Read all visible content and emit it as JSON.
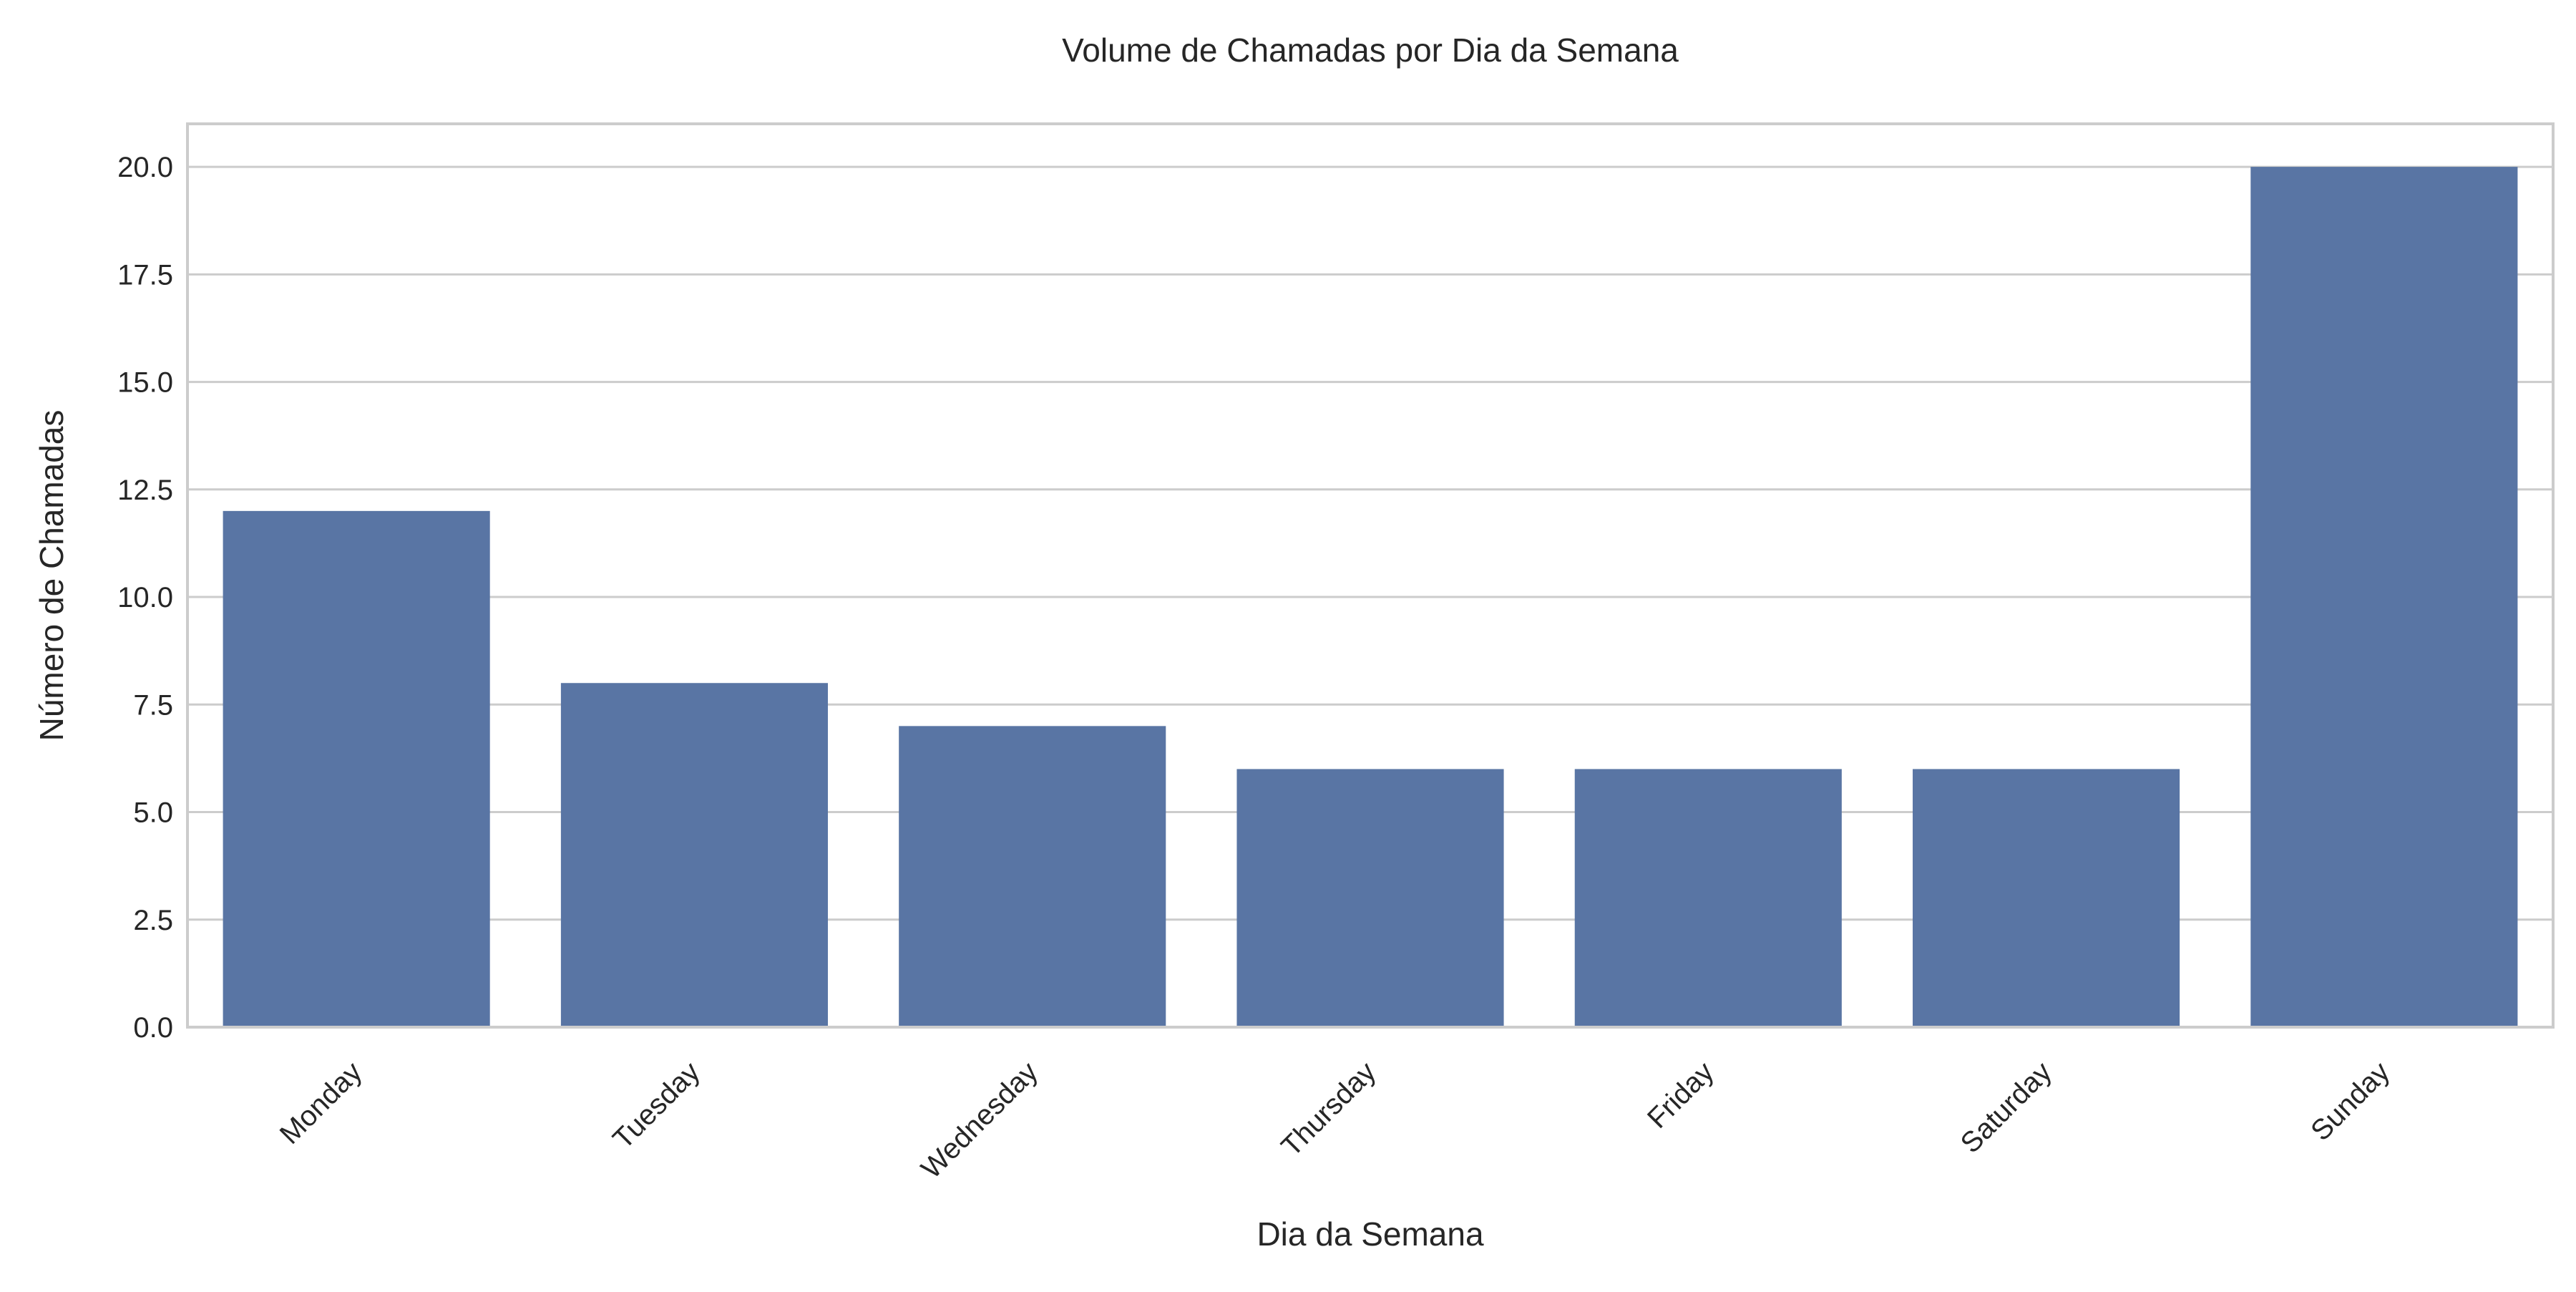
{
  "chart_data": {
    "type": "bar",
    "title": "Volume de Chamadas por Dia da Semana",
    "xlabel": "Dia da Semana",
    "ylabel": "Número de Chamadas",
    "categories": [
      "Monday",
      "Tuesday",
      "Wednesday",
      "Thursday",
      "Friday",
      "Saturday",
      "Sunday"
    ],
    "values": [
      12,
      8,
      7,
      6,
      6,
      6,
      20
    ],
    "ylim": [
      0,
      21
    ],
    "yticks": [
      "0.0",
      "2.5",
      "5.0",
      "7.5",
      "10.0",
      "12.5",
      "15.0",
      "17.5",
      "20.0"
    ],
    "grid": "horizontal",
    "bar_color": "#5975a4",
    "grid_color": "#cccccc"
  }
}
